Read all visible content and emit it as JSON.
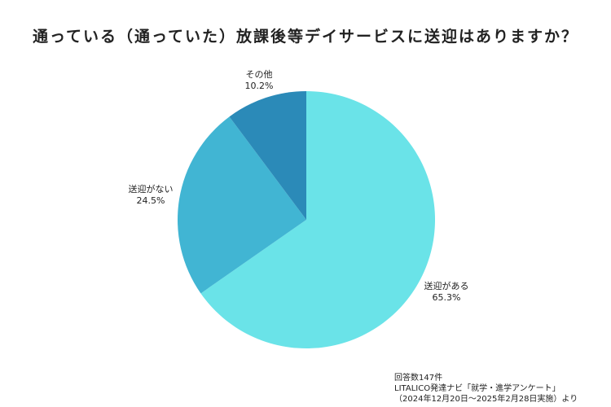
{
  "chart_data": {
    "type": "pie",
    "title": "通っている（通っていた）放課後等デイサービスに送迎はありますか？",
    "slices": [
      {
        "label": "送迎がある",
        "value": 65.3,
        "value_label": "65.3%",
        "color": "#6ae3e8"
      },
      {
        "label": "送迎がない",
        "value": 24.5,
        "value_label": "24.5%",
        "color": "#41b5d3"
      },
      {
        "label": "その他",
        "value": 10.2,
        "value_label": "10.2%",
        "color": "#2b8ab8"
      }
    ],
    "start": "12 o'clock",
    "direction": "clockwise",
    "legend": "none"
  },
  "footnote": {
    "line1": "回答数147件",
    "line2": "LITALICO発達ナビ「就学・進学アンケート」",
    "line3": "（2024年12月20日〜2025年2月28日実施）より"
  }
}
